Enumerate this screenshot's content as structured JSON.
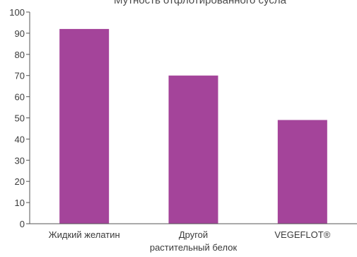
{
  "chart_data": {
    "type": "bar",
    "title": "Мутность отфлотированного сусла",
    "categories": [
      [
        "Жидкий желатин"
      ],
      [
        "Другой",
        "растительный белок"
      ],
      [
        "VEGEFLOT®"
      ]
    ],
    "values": [
      92,
      70,
      49
    ],
    "ylim": [
      0,
      100
    ],
    "yticks": [
      0,
      10,
      20,
      30,
      40,
      50,
      60,
      70,
      80,
      90,
      100
    ],
    "bar_color": "#a4449a",
    "grid": false,
    "xlabel": "",
    "ylabel": ""
  }
}
